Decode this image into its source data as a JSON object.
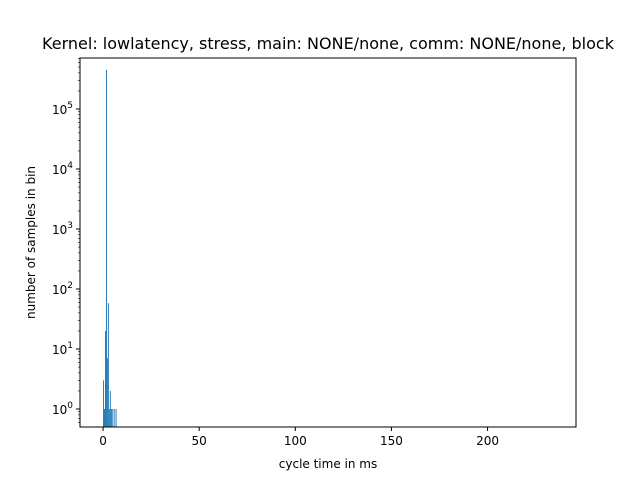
{
  "chart_data": {
    "type": "bar",
    "title": "Kernel: lowlatency, stress, main: NONE/none, comm: NONE/none, block",
    "xlabel": "cycle time in ms",
    "ylabel": "number of samples in bin",
    "xlim": [
      -12,
      246
    ],
    "ylim_log10": [
      -0.3,
      5.85
    ],
    "yscale": "log",
    "bar_color": "#1f77b4",
    "bin_width": 0.5,
    "x_ticks": [
      "0",
      "50",
      "100",
      "150",
      "200"
    ],
    "x_tick_values": [
      0,
      50,
      100,
      150,
      200
    ],
    "y_ticks": [
      "0",
      "1",
      "2",
      "3",
      "4",
      "5"
    ],
    "y_tick_base": "10",
    "grid": false,
    "bins": [
      {
        "x": 0.0,
        "count": 3
      },
      {
        "x": 0.5,
        "count": 1
      },
      {
        "x": 1.0,
        "count": 20
      },
      {
        "x": 1.5,
        "count": 450000
      },
      {
        "x": 2.0,
        "count": 7
      },
      {
        "x": 2.5,
        "count": 58
      },
      {
        "x": 3.0,
        "count": 1
      },
      {
        "x": 3.5,
        "count": 2
      },
      {
        "x": 4.0,
        "count": 1
      },
      {
        "x": 4.5,
        "count": 1
      },
      {
        "x": 5.5,
        "count": 1
      },
      {
        "x": 6.5,
        "count": 1
      }
    ]
  }
}
